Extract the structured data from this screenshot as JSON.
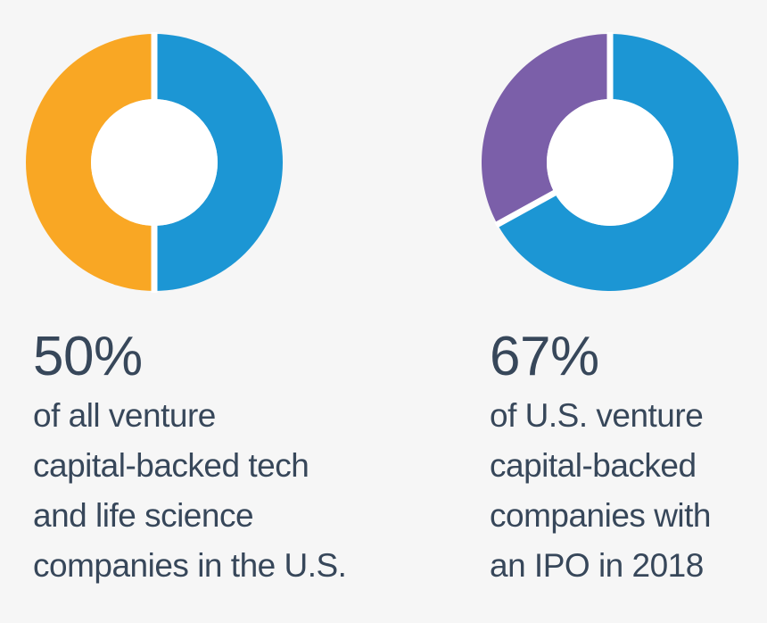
{
  "chart_data": [
    {
      "type": "pie",
      "style": "donut",
      "slices": [
        {
          "value": 50,
          "color": "#1c96d4"
        },
        {
          "value": 50,
          "color": "#f9a724"
        }
      ],
      "stat": "50%",
      "caption_lines": [
        "of all venture",
        "capital-backed tech",
        "and life science",
        "companies in the U.S."
      ]
    },
    {
      "type": "pie",
      "style": "donut",
      "slices": [
        {
          "value": 67,
          "color": "#1c96d4"
        },
        {
          "value": 33,
          "color": "#7b5fa9"
        }
      ],
      "stat": "67%",
      "caption_lines": [
        "of U.S. venture",
        "capital-backed",
        "companies with",
        "an IPO in 2018"
      ]
    }
  ]
}
